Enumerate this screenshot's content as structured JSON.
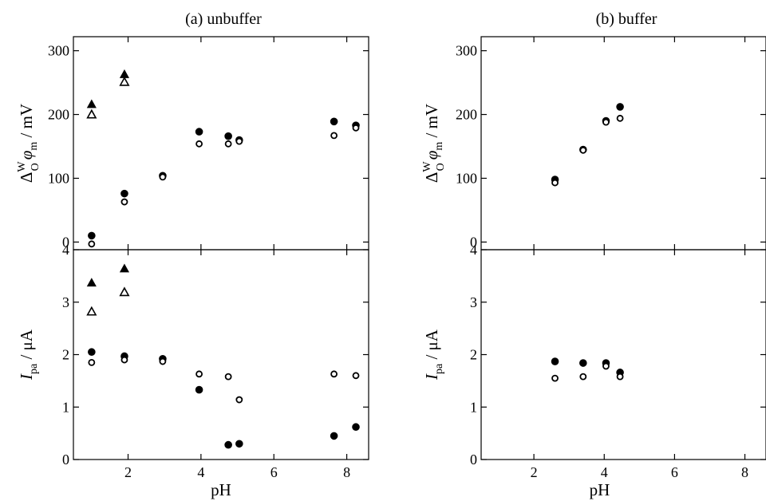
{
  "panels": [
    {
      "title": "(a) unbuffer",
      "xlabel": "pH",
      "top": {
        "chart_data": {
          "type": "scatter",
          "ylabel": "Δ",
          "ylabel_sup": "W",
          "ylabel_sub": "O",
          "ylabel_phi": "φ",
          "ylabel_phi_sub": "m",
          "ylabel_unit": " / mV",
          "xlim": [
            0.5,
            8.6
          ],
          "ylim": [
            -12,
            322
          ],
          "yticks": [
            0,
            100,
            200,
            300
          ],
          "yticklabels": [
            "0",
            "100",
            "200",
            "300"
          ],
          "series": [
            {
              "marker": "filled-circle",
              "points": [
                [
                  1.0,
                  10
                ],
                [
                  1.9,
                  76
                ],
                [
                  2.95,
                  104
                ],
                [
                  3.95,
                  173
                ],
                [
                  4.75,
                  166
                ],
                [
                  5.05,
                  160
                ],
                [
                  7.65,
                  189
                ],
                [
                  8.25,
                  183
                ]
              ]
            },
            {
              "marker": "open-circle",
              "points": [
                [
                  1.0,
                  -3
                ],
                [
                  1.9,
                  63
                ],
                [
                  2.95,
                  102
                ],
                [
                  3.95,
                  154
                ],
                [
                  4.75,
                  154
                ],
                [
                  5.05,
                  158
                ],
                [
                  7.65,
                  167
                ],
                [
                  8.25,
                  179
                ]
              ]
            },
            {
              "marker": "filled-triangle",
              "points": [
                [
                  1.0,
                  216
                ],
                [
                  1.9,
                  263
                ]
              ]
            },
            {
              "marker": "open-triangle",
              "points": [
                [
                  1.0,
                  200
                ],
                [
                  1.9,
                  251
                ]
              ]
            }
          ]
        }
      },
      "bottom": {
        "chart_data": {
          "type": "scatter",
          "ylabel": "I",
          "ylabel_sub": "pa",
          "ylabel_unit": " / μA",
          "xlim": [
            0.5,
            8.6
          ],
          "ylim": [
            0,
            4
          ],
          "xticks": [
            2,
            4,
            6,
            8
          ],
          "xticklabels": [
            "2",
            "4",
            "6",
            "8"
          ],
          "yticks": [
            0,
            1,
            2,
            3,
            4
          ],
          "yticklabels": [
            "0",
            "1",
            "2",
            "3",
            "4"
          ],
          "series": [
            {
              "marker": "filled-circle",
              "points": [
                [
                  1.0,
                  2.05
                ],
                [
                  1.9,
                  1.97
                ],
                [
                  2.95,
                  1.92
                ],
                [
                  3.95,
                  1.33
                ],
                [
                  4.75,
                  0.28
                ],
                [
                  5.05,
                  0.3
                ],
                [
                  7.65,
                  0.45
                ],
                [
                  8.25,
                  0.62
                ]
              ]
            },
            {
              "marker": "open-circle",
              "points": [
                [
                  1.0,
                  1.85
                ],
                [
                  1.9,
                  1.9
                ],
                [
                  2.95,
                  1.87
                ],
                [
                  3.95,
                  1.63
                ],
                [
                  4.75,
                  1.58
                ],
                [
                  5.05,
                  1.14
                ],
                [
                  7.65,
                  1.63
                ],
                [
                  8.25,
                  1.6
                ]
              ]
            },
            {
              "marker": "filled-triangle",
              "points": [
                [
                  1.0,
                  3.37
                ],
                [
                  1.9,
                  3.64
                ]
              ]
            },
            {
              "marker": "open-triangle",
              "points": [
                [
                  1.0,
                  2.82
                ],
                [
                  1.9,
                  3.19
                ]
              ]
            }
          ]
        }
      }
    },
    {
      "title": "(b) buffer",
      "xlabel": "pH",
      "top": {
        "chart_data": {
          "type": "scatter",
          "ylabel": "Δ",
          "ylabel_sup": "W",
          "ylabel_sub": "O",
          "ylabel_phi": "φ",
          "ylabel_phi_sub": "m",
          "ylabel_unit": " / mV",
          "xlim": [
            0.5,
            8.6
          ],
          "ylim": [
            -12,
            322
          ],
          "yticks": [
            0,
            100,
            200,
            300
          ],
          "yticklabels": [
            "0",
            "100",
            "200",
            "300"
          ],
          "series": [
            {
              "marker": "filled-circle",
              "points": [
                [
                  2.6,
                  98
                ],
                [
                  3.4,
                  145
                ],
                [
                  4.05,
                  190
                ],
                [
                  4.45,
                  212
                ]
              ]
            },
            {
              "marker": "open-circle",
              "points": [
                [
                  2.6,
                  93
                ],
                [
                  3.4,
                  144
                ],
                [
                  4.05,
                  188
                ],
                [
                  4.45,
                  194
                ]
              ]
            }
          ]
        }
      },
      "bottom": {
        "chart_data": {
          "type": "scatter",
          "ylabel": "I",
          "ylabel_sub": "pa",
          "ylabel_unit": " / μA",
          "xlim": [
            0.5,
            8.6
          ],
          "ylim": [
            0,
            4
          ],
          "xticks": [
            2,
            4,
            6,
            8
          ],
          "xticklabels": [
            "2",
            "4",
            "6",
            "8"
          ],
          "yticks": [
            0,
            1,
            2,
            3,
            4
          ],
          "yticklabels": [
            "0",
            "1",
            "2",
            "3",
            "4"
          ],
          "series": [
            {
              "marker": "filled-circle",
              "points": [
                [
                  2.6,
                  1.87
                ],
                [
                  3.4,
                  1.84
                ],
                [
                  4.05,
                  1.84
                ],
                [
                  4.45,
                  1.66
                ]
              ]
            },
            {
              "marker": "open-circle",
              "points": [
                [
                  2.6,
                  1.55
                ],
                [
                  3.4,
                  1.58
                ],
                [
                  4.05,
                  1.78
                ],
                [
                  4.45,
                  1.58
                ]
              ]
            }
          ]
        }
      }
    }
  ]
}
